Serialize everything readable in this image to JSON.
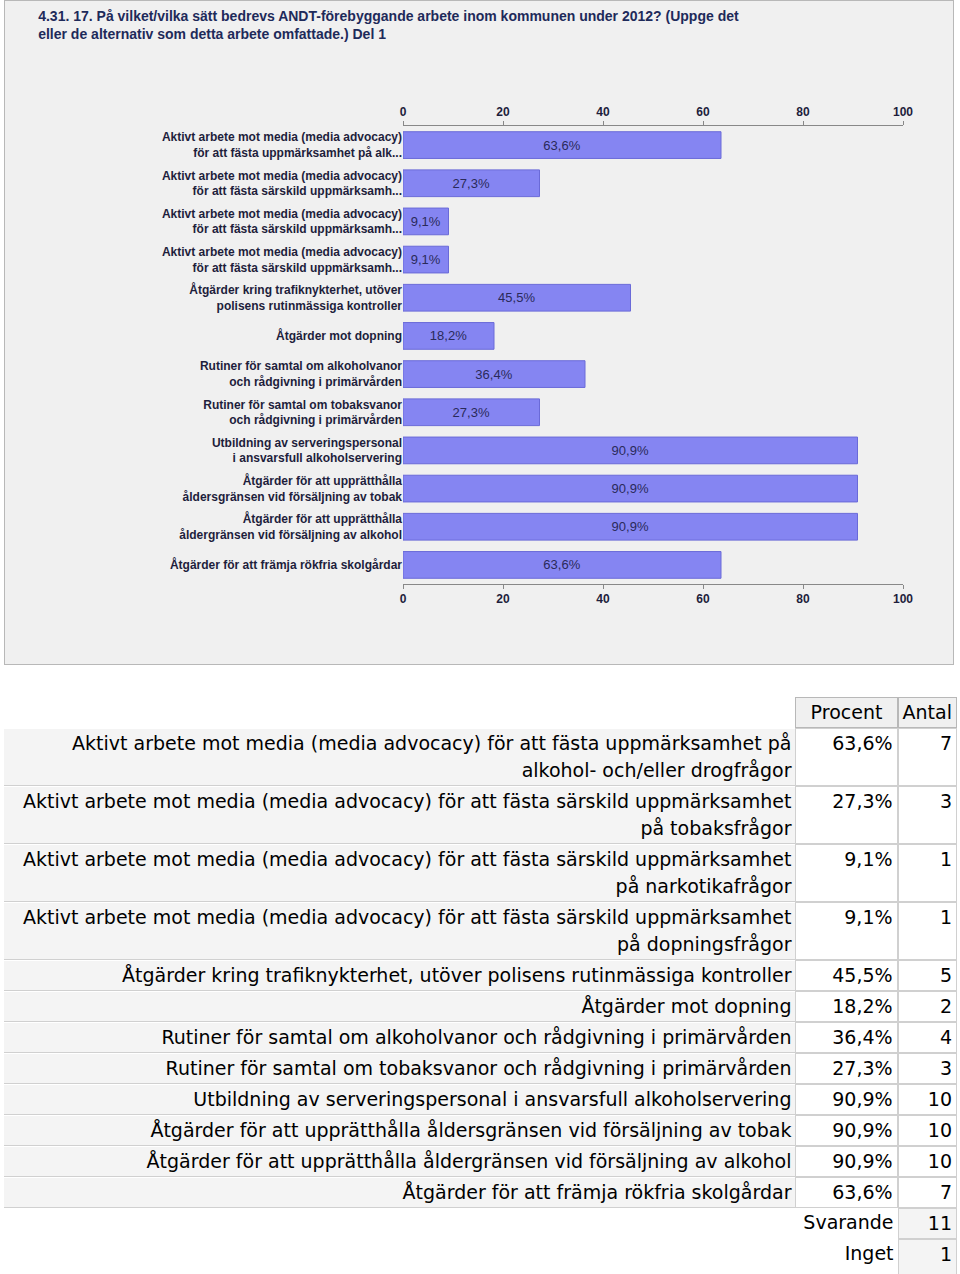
{
  "chart_data": {
    "type": "bar",
    "orientation": "horizontal",
    "title": "4.31. 17. På vilket/vilka sätt bedrevs ANDT-förebyggande arbete inom kommunen under 2012? (Uppge det\neller de alternativ som detta arbete omfattade.) Del 1",
    "categories": [
      "Aktivt arbete mot media (media advocacy)\nför att fästa uppmärksamhet på alk...",
      "Aktivt arbete mot media (media advocacy)\nför att fästa särskild uppmärksamh...",
      "Aktivt arbete mot media (media advocacy)\nför att fästa särskild uppmärksamh...",
      "Aktivt arbete mot media (media advocacy)\nför att fästa särskild uppmärksamh...",
      "Åtgärder kring trafiknykterhet, utöver\npolisens rutinmässiga kontroller",
      "Åtgärder mot dopning",
      "Rutiner för samtal om alkoholvanor\noch rådgivning i primärvården",
      "Rutiner för samtal om tobaksvanor\noch rådgivning i primärvården",
      "Utbildning av serveringspersonal\ni ansvarsfull alkoholservering",
      "Åtgärder för att upprätthålla\nåldersgränsen vid försäljning av tobak",
      "Åtgärder för att upprätthålla\nåldergränsen vid försäljning av alkohol",
      "Åtgärder för att främja rökfria skolgårdar"
    ],
    "values": [
      63.6,
      27.3,
      9.1,
      9.1,
      45.5,
      18.2,
      36.4,
      27.3,
      90.9,
      90.9,
      90.9,
      63.6
    ],
    "value_labels": [
      "63,6%",
      "27,3%",
      "9,1%",
      "9,1%",
      "45,5%",
      "18,2%",
      "36,4%",
      "27,3%",
      "90,9%",
      "90,9%",
      "90,9%",
      "63,6%"
    ],
    "data_labels": true,
    "color": "#8585f2",
    "xlim": [
      0,
      100
    ],
    "xticks": [
      0,
      20,
      40,
      60,
      80,
      100
    ],
    "grid": false
  },
  "table": {
    "header": [
      "Procent",
      "Antal"
    ],
    "rows": [
      [
        "Aktivt arbete mot media (media advocacy) för att fästa uppmärksamhet på alkohol- och/eller drogfrågor",
        "63,6%",
        7
      ],
      [
        "Aktivt arbete mot media (media advocacy) för att fästa särskild uppmärksamhet på tobaksfrågor",
        "27,3%",
        3
      ],
      [
        "Aktivt arbete mot media (media advocacy) för att fästa särskild uppmärksamhet på narkotikafrågor",
        "9,1%",
        1
      ],
      [
        "Aktivt arbete mot media (media advocacy) för att fästa särskild uppmärksamhet på dopningsfrågor",
        "9,1%",
        1
      ],
      [
        "Åtgärder kring trafiknykterhet, utöver polisens rutinmässiga kontroller",
        "45,5%",
        5
      ],
      [
        "Åtgärder mot dopning",
        "18,2%",
        2
      ],
      [
        "Rutiner för samtal om alkoholvanor och rådgivning i primärvården",
        "36,4%",
        4
      ],
      [
        "Rutiner för samtal om tobaksvanor och rådgivning i primärvården",
        "27,3%",
        3
      ],
      [
        "Utbildning av serveringspersonal i ansvarsfull alkoholservering",
        "90,9%",
        10
      ],
      [
        "Åtgärder för att upprätthålla åldersgränsen vid försäljning av tobak",
        "90,9%",
        10
      ],
      [
        "Åtgärder för att upprätthålla åldergränsen vid försäljning av alkohol",
        "90,9%",
        10
      ],
      [
        "Åtgärder för att främja rökfria skolgårdar",
        "63,6%",
        7
      ]
    ],
    "footer": [
      [
        "Svarande",
        11
      ],
      [
        "Inget svar",
        1
      ]
    ]
  }
}
